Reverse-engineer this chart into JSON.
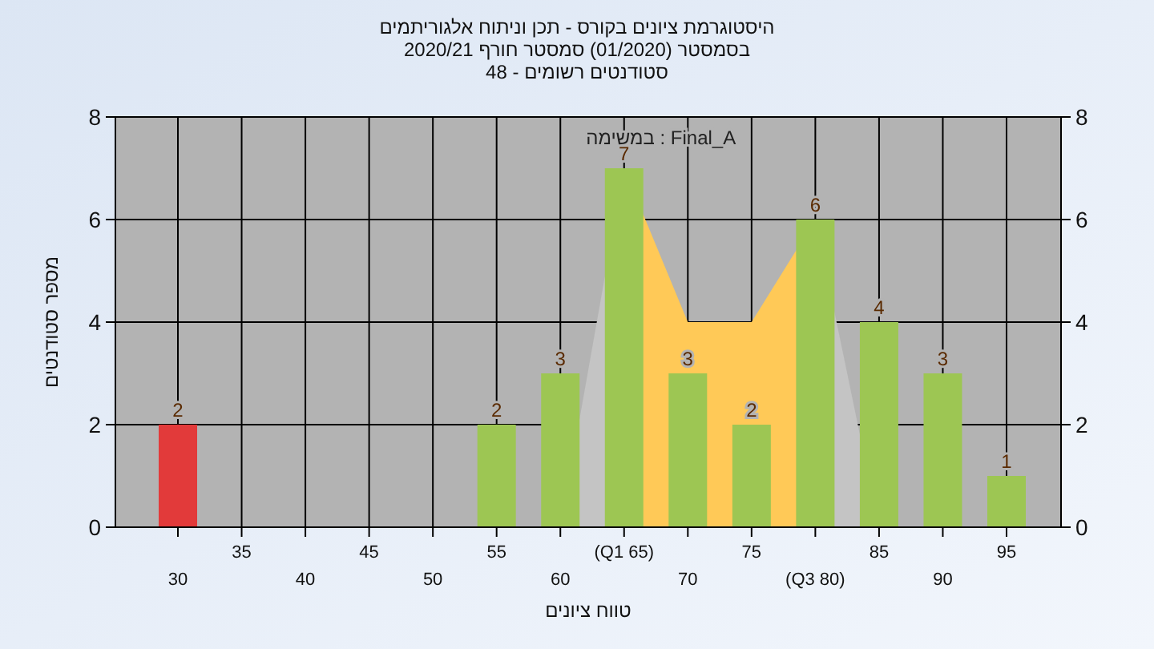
{
  "chart_data": {
    "type": "bar",
    "title": "היסטוגרמת ציונים בקורס - תכן וניתוח אלגוריתמים",
    "subtitle": "בסמסטר  (01/2020)  סמסטר חורף  2020/21\nסטודנטים רשומים - 48",
    "xlabel": "טווח ציונים",
    "ylabel": "מספר סטודנטים",
    "categories": [
      "30",
      "35",
      "40",
      "45",
      "50",
      "55",
      "60",
      "(Q1 65)",
      "70",
      "75",
      "(Q3 80)",
      "85",
      "90",
      "95"
    ],
    "series": [
      {
        "type": "area",
        "color": "#c4c4c4",
        "values": [
          null,
          null,
          null,
          null,
          null,
          null,
          0,
          7,
          null,
          null,
          null,
          null,
          null,
          null
        ]
      },
      {
        "type": "area",
        "color": "#ffc957",
        "values": [
          null,
          null,
          null,
          null,
          null,
          null,
          null,
          7,
          4,
          4,
          6,
          null,
          null,
          null
        ]
      },
      {
        "type": "area",
        "color": "#c4c4c4",
        "values": [
          null,
          null,
          null,
          null,
          null,
          null,
          null,
          null,
          null,
          null,
          6,
          0,
          null,
          null
        ]
      },
      {
        "colors": [
          "#e23a3a",
          "#9dc653",
          "#9dc653",
          "#9dc653",
          "#9dc653",
          "#9dc653",
          "#9dc653",
          "#9dc653",
          "#9dc653",
          "#9dc653",
          "#9dc653",
          "#9dc653",
          "#9dc653",
          "#9dc653"
        ],
        "values": [
          2,
          0,
          0,
          0,
          0,
          2,
          3,
          7,
          3,
          2,
          6,
          4,
          3,
          1
        ],
        "value_labels": [
          "2",
          null,
          null,
          null,
          null,
          "2",
          "3",
          "7",
          "3",
          "2",
          "6",
          "4",
          "3",
          "1"
        ]
      }
    ],
    "ylim": [
      0,
      8
    ],
    "yticks": [
      0,
      2,
      4,
      6,
      8
    ],
    "y2lim": [
      0,
      8
    ],
    "y2ticks": [
      0,
      2,
      4,
      6,
      8
    ],
    "grid": true,
    "annotations": [
      "במשימה : Final_A"
    ]
  }
}
